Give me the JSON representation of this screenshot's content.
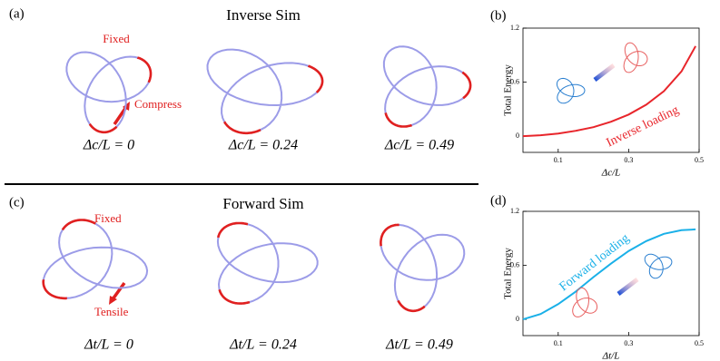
{
  "top": {
    "label": "(a)",
    "title": "Inverse Sim",
    "fixed": "Fixed",
    "action": "Compress",
    "captions": [
      "Δc/L = 0",
      "Δc/L = 0.24",
      "Δc/L = 0.49"
    ]
  },
  "bottom": {
    "label": "(c)",
    "title": "Forward Sim",
    "fixed": "Fixed",
    "action": "Tensile",
    "captions": [
      "Δt/L = 0",
      "Δt/L = 0.24",
      "Δt/L = 0.49"
    ]
  },
  "chart_data": [
    {
      "type": "line",
      "label": "(b)",
      "y_label": "Total Energy",
      "x_label": "Δc/L",
      "annotation": "Inverse loading",
      "x": [
        0,
        0.05,
        0.1,
        0.15,
        0.2,
        0.25,
        0.3,
        0.35,
        0.4,
        0.45,
        0.49
      ],
      "values": [
        0,
        0.01,
        0.03,
        0.06,
        0.1,
        0.16,
        0.24,
        0.35,
        0.5,
        0.72,
        1.0
      ],
      "color": "#e8252b",
      "xlim": [
        0,
        0.5
      ],
      "ylim": [
        -0.18,
        1.2
      ],
      "xticks": [
        0.1,
        0.3,
        0.5
      ],
      "yticks": [
        0,
        0.6,
        1.2
      ]
    },
    {
      "type": "line",
      "label": "(d)",
      "y_label": "Total Energy",
      "x_label": "Δt/L",
      "annotation": "Forward loading",
      "x": [
        0,
        0.05,
        0.1,
        0.15,
        0.2,
        0.25,
        0.3,
        0.35,
        0.4,
        0.45,
        0.49
      ],
      "values": [
        0,
        0.06,
        0.17,
        0.31,
        0.47,
        0.62,
        0.76,
        0.87,
        0.95,
        0.99,
        1.0
      ],
      "color": "#1ab0e8",
      "xlim": [
        0,
        0.5
      ],
      "ylim": [
        -0.18,
        1.2
      ],
      "xticks": [
        0.1,
        0.3,
        0.5
      ],
      "yticks": [
        0,
        0.6,
        1.2
      ]
    }
  ]
}
